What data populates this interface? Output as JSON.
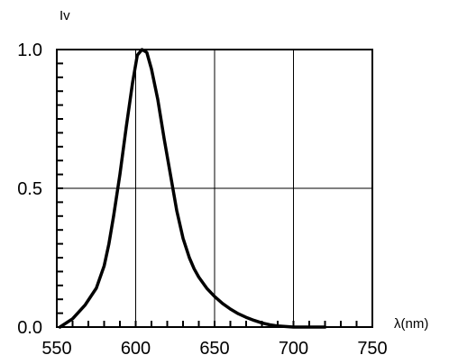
{
  "chart_data": {
    "type": "line",
    "title": "",
    "ylabel": "Iv",
    "xlabel": "λ(nm)",
    "xlim": [
      550,
      750
    ],
    "ylim": [
      0,
      1.0
    ],
    "x_ticks": [
      "550",
      "600",
      "650",
      "700",
      "750"
    ],
    "y_ticks": [
      "0.0",
      "0.5",
      "1.0"
    ],
    "x_minor_step": 10,
    "grid": true,
    "legend": "none",
    "series": [
      {
        "x": [
          552,
          560,
          568,
          575,
          580,
          583,
          586,
          590,
          594,
          598,
          601,
          604,
          607,
          610,
          614,
          618,
          622,
          626,
          630,
          634,
          637,
          640,
          645,
          650,
          655,
          660,
          665,
          670,
          675,
          680,
          685,
          690,
          695,
          700,
          705,
          710,
          715,
          720
        ],
        "y": [
          0.0,
          0.03,
          0.08,
          0.14,
          0.22,
          0.3,
          0.4,
          0.55,
          0.72,
          0.88,
          0.98,
          1.0,
          0.99,
          0.93,
          0.82,
          0.68,
          0.55,
          0.42,
          0.32,
          0.25,
          0.21,
          0.18,
          0.14,
          0.11,
          0.085,
          0.065,
          0.048,
          0.035,
          0.024,
          0.015,
          0.008,
          0.004,
          0.002,
          0.0,
          0.0,
          0.0,
          0.0,
          0.0
        ]
      }
    ],
    "colors": {
      "line": "#000000",
      "grid": "#000000",
      "background": "#ffffff"
    }
  }
}
